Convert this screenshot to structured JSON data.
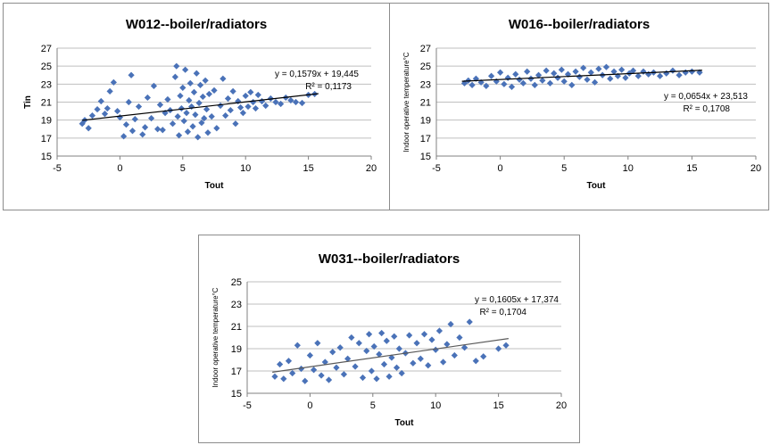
{
  "chart_data": [
    {
      "type": "scatter",
      "title": "W012--boiler/radiators",
      "xlabel": "Tout",
      "ylabel": "Tin",
      "xlim": [
        -5,
        20
      ],
      "ylim": [
        15,
        27
      ],
      "xticks": [
        "-5",
        "0",
        "5",
        "10",
        "15",
        "20"
      ],
      "yticks": [
        "15",
        "17",
        "19",
        "21",
        "23",
        "25",
        "27"
      ],
      "grid": "horizontal",
      "marker_color": "#4a72b8",
      "equation": "y = 0,1579x + 19,445",
      "r2": "R² = 0,1173",
      "trendline": {
        "slope": 0.1579,
        "intercept": 19.445,
        "x_range": [
          -3,
          15.8
        ]
      },
      "points": [
        [
          -3,
          18.6
        ],
        [
          -2.8,
          19
        ],
        [
          -2.5,
          18.1
        ],
        [
          -2.2,
          19.5
        ],
        [
          -1.8,
          20.2
        ],
        [
          -1.5,
          21.1
        ],
        [
          -1.2,
          19.7
        ],
        [
          -1,
          20.3
        ],
        [
          -0.8,
          22.2
        ],
        [
          -0.5,
          23.2
        ],
        [
          -0.2,
          20
        ],
        [
          0,
          19.3
        ],
        [
          0.3,
          17.2
        ],
        [
          0.5,
          18.5
        ],
        [
          0.7,
          21
        ],
        [
          0.9,
          24
        ],
        [
          1,
          17.8
        ],
        [
          1.2,
          19.1
        ],
        [
          1.5,
          20.5
        ],
        [
          1.8,
          17.4
        ],
        [
          2,
          18.2
        ],
        [
          2.2,
          21.5
        ],
        [
          2.5,
          19.2
        ],
        [
          2.7,
          22.8
        ],
        [
          3,
          18
        ],
        [
          3.2,
          20.7
        ],
        [
          3.4,
          17.9
        ],
        [
          3.6,
          19.8
        ],
        [
          3.8,
          21.3
        ],
        [
          4,
          20.1
        ],
        [
          4.2,
          18.6
        ],
        [
          4.4,
          23.8
        ],
        [
          4.5,
          25
        ],
        [
          4.6,
          19.4
        ],
        [
          4.7,
          17.3
        ],
        [
          4.8,
          21.7
        ],
        [
          4.9,
          20.3
        ],
        [
          5,
          22.6
        ],
        [
          5.1,
          18.9
        ],
        [
          5.2,
          24.6
        ],
        [
          5.3,
          19.8
        ],
        [
          5.4,
          17.7
        ],
        [
          5.5,
          21.2
        ],
        [
          5.6,
          23.1
        ],
        [
          5.7,
          20.5
        ],
        [
          5.8,
          18.3
        ],
        [
          5.9,
          22.1
        ],
        [
          6,
          19.6
        ],
        [
          6.1,
          24.2
        ],
        [
          6.2,
          17.1
        ],
        [
          6.3,
          20.9
        ],
        [
          6.4,
          22.9
        ],
        [
          6.5,
          18.7
        ],
        [
          6.6,
          21.6
        ],
        [
          6.7,
          19.2
        ],
        [
          6.8,
          23.4
        ],
        [
          6.9,
          20.2
        ],
        [
          7,
          17.6
        ],
        [
          7.1,
          21.9
        ],
        [
          7.3,
          19.4
        ],
        [
          7.5,
          22.3
        ],
        [
          7.7,
          18.1
        ],
        [
          8,
          20.6
        ],
        [
          8.2,
          23.6
        ],
        [
          8.4,
          19.5
        ],
        [
          8.6,
          21.4
        ],
        [
          8.8,
          20.1
        ],
        [
          9,
          22.2
        ],
        [
          9.2,
          18.6
        ],
        [
          9.4,
          21.1
        ],
        [
          9.6,
          20.4
        ],
        [
          9.8,
          19.8
        ],
        [
          10,
          21.7
        ],
        [
          10.2,
          20.5
        ],
        [
          10.4,
          22.1
        ],
        [
          10.6,
          21
        ],
        [
          10.8,
          20.3
        ],
        [
          11,
          21.8
        ],
        [
          11.3,
          21.1
        ],
        [
          11.6,
          20.6
        ],
        [
          12,
          21.4
        ],
        [
          12.4,
          21
        ],
        [
          12.8,
          20.8
        ],
        [
          13.2,
          21.5
        ],
        [
          13.6,
          21.2
        ],
        [
          14,
          21
        ],
        [
          14.5,
          20.9
        ],
        [
          15,
          21.8
        ],
        [
          15.5,
          21.9
        ]
      ]
    },
    {
      "type": "scatter",
      "title": "W016--boiler/radiators",
      "xlabel": "Tout",
      "ylabel": "Indoor operative temperature°C",
      "xlim": [
        -5,
        20
      ],
      "ylim": [
        15,
        27
      ],
      "xticks": [
        "-5",
        "0",
        "5",
        "10",
        "15",
        "20"
      ],
      "yticks": [
        "15",
        "17",
        "19",
        "21",
        "23",
        "25",
        "27"
      ],
      "grid": "horizontal",
      "marker_color": "#4a72b8",
      "equation": "y = 0,0654x + 23,513",
      "r2": "R² = 0,1708",
      "trendline": {
        "slope": 0.0654,
        "intercept": 23.513,
        "x_range": [
          -3,
          15.8
        ]
      },
      "points": [
        [
          -2.8,
          23.1
        ],
        [
          -2.5,
          23.4
        ],
        [
          -2.2,
          22.9
        ],
        [
          -1.9,
          23.6
        ],
        [
          -1.5,
          23.2
        ],
        [
          -1.1,
          22.8
        ],
        [
          -0.7,
          23.9
        ],
        [
          -0.3,
          23.3
        ],
        [
          0,
          24.3
        ],
        [
          0.3,
          23
        ],
        [
          0.6,
          23.7
        ],
        [
          0.9,
          22.7
        ],
        [
          1.2,
          24.1
        ],
        [
          1.5,
          23.5
        ],
        [
          1.8,
          23.1
        ],
        [
          2.1,
          24.4
        ],
        [
          2.4,
          23.6
        ],
        [
          2.7,
          22.9
        ],
        [
          3,
          24
        ],
        [
          3.3,
          23.4
        ],
        [
          3.6,
          24.5
        ],
        [
          3.9,
          23.1
        ],
        [
          4.2,
          24.2
        ],
        [
          4.5,
          23.7
        ],
        [
          4.8,
          24.6
        ],
        [
          5,
          23.3
        ],
        [
          5.3,
          24.1
        ],
        [
          5.6,
          22.9
        ],
        [
          5.9,
          24.4
        ],
        [
          6.2,
          23.8
        ],
        [
          6.5,
          24.8
        ],
        [
          6.8,
          23.5
        ],
        [
          7.1,
          24.3
        ],
        [
          7.4,
          23.2
        ],
        [
          7.7,
          24.7
        ],
        [
          8,
          24
        ],
        [
          8.3,
          24.9
        ],
        [
          8.6,
          23.6
        ],
        [
          8.9,
          24.4
        ],
        [
          9.2,
          23.9
        ],
        [
          9.5,
          24.6
        ],
        [
          9.8,
          23.7
        ],
        [
          10.1,
          24.2
        ],
        [
          10.4,
          24.5
        ],
        [
          10.8,
          23.9
        ],
        [
          11.2,
          24.4
        ],
        [
          11.6,
          24.1
        ],
        [
          12,
          24.3
        ],
        [
          12.5,
          23.9
        ],
        [
          13,
          24.2
        ],
        [
          13.5,
          24.5
        ],
        [
          14,
          24
        ],
        [
          14.5,
          24.3
        ],
        [
          15,
          24.4
        ],
        [
          15.6,
          24.3
        ]
      ]
    },
    {
      "type": "scatter",
      "title": "W031--boiler/radiators",
      "xlabel": "Tout",
      "ylabel": "Indoor operative temperature°C",
      "xlim": [
        -5,
        20
      ],
      "ylim": [
        15,
        25
      ],
      "xticks": [
        "-5",
        "0",
        "5",
        "10",
        "15",
        "20"
      ],
      "yticks": [
        "15",
        "17",
        "19",
        "21",
        "23",
        "25"
      ],
      "grid": "horizontal",
      "marker_color": "#4a72b8",
      "equation": "y = 0,1605x + 17,374",
      "r2": "R² = 0,1704",
      "trendline": {
        "slope": 0.1605,
        "intercept": 17.374,
        "x_range": [
          -3,
          15.8
        ]
      },
      "points": [
        [
          -2.8,
          16.5
        ],
        [
          -2.4,
          17.6
        ],
        [
          -2.1,
          16.3
        ],
        [
          -1.7,
          17.9
        ],
        [
          -1.4,
          16.8
        ],
        [
          -1,
          19.3
        ],
        [
          -0.7,
          17.2
        ],
        [
          -0.4,
          16.1
        ],
        [
          0,
          18.4
        ],
        [
          0.3,
          17.1
        ],
        [
          0.6,
          19.5
        ],
        [
          0.9,
          16.6
        ],
        [
          1.2,
          17.8
        ],
        [
          1.5,
          16.2
        ],
        [
          1.8,
          18.7
        ],
        [
          2.1,
          17.3
        ],
        [
          2.4,
          19.1
        ],
        [
          2.7,
          16.7
        ],
        [
          3,
          18.1
        ],
        [
          3.3,
          20
        ],
        [
          3.6,
          17.4
        ],
        [
          3.9,
          19.5
        ],
        [
          4.2,
          16.4
        ],
        [
          4.5,
          18.8
        ],
        [
          4.7,
          20.3
        ],
        [
          4.9,
          17
        ],
        [
          5.1,
          19.2
        ],
        [
          5.3,
          16.3
        ],
        [
          5.5,
          18.5
        ],
        [
          5.7,
          20.4
        ],
        [
          5.9,
          17.6
        ],
        [
          6.1,
          19.7
        ],
        [
          6.3,
          16.5
        ],
        [
          6.5,
          18.2
        ],
        [
          6.7,
          20.1
        ],
        [
          6.9,
          17.3
        ],
        [
          7.1,
          19
        ],
        [
          7.3,
          16.8
        ],
        [
          7.6,
          18.6
        ],
        [
          7.9,
          20.2
        ],
        [
          8.2,
          17.7
        ],
        [
          8.5,
          19.5
        ],
        [
          8.8,
          18.1
        ],
        [
          9.1,
          20.3
        ],
        [
          9.4,
          17.5
        ],
        [
          9.7,
          19.8
        ],
        [
          10,
          18.9
        ],
        [
          10.3,
          20.6
        ],
        [
          10.6,
          17.8
        ],
        [
          10.9,
          19.4
        ],
        [
          11.2,
          21.2
        ],
        [
          11.5,
          18.4
        ],
        [
          11.9,
          20
        ],
        [
          12.3,
          19.1
        ],
        [
          12.7,
          21.4
        ],
        [
          13.2,
          17.9
        ],
        [
          13.8,
          18.3
        ],
        [
          15,
          19
        ],
        [
          15.6,
          19.3
        ]
      ]
    }
  ]
}
